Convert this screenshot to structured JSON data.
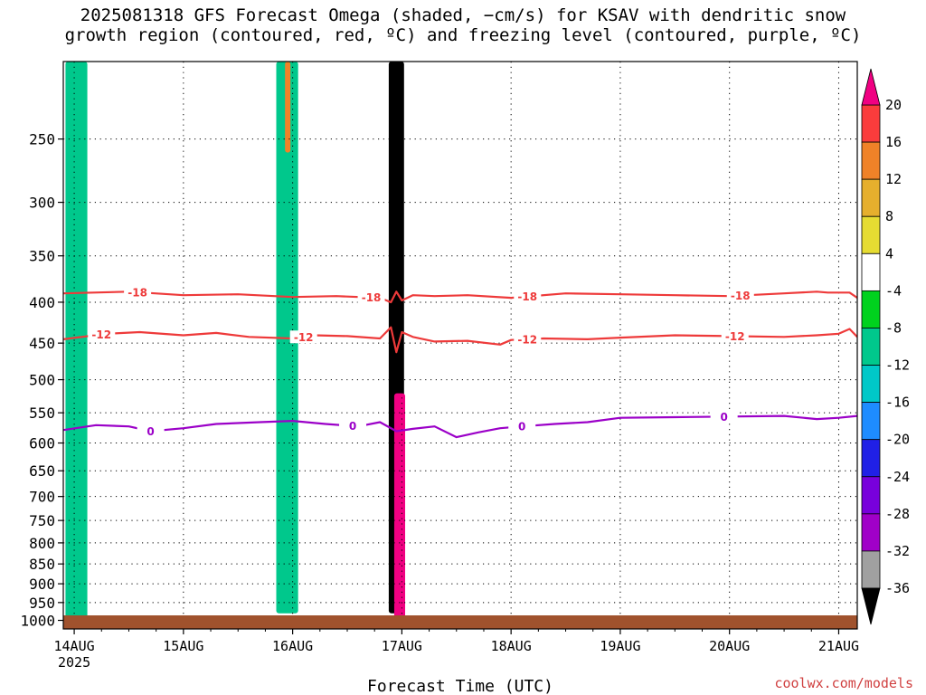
{
  "title_line1": "2025081318 GFS Forecast Omega (shaded, −cm/s) for KSAV with dendritic snow",
  "title_line2": "growth region (contoured, red, ºC) and freezing level (contoured, purple, ºC)",
  "credit": "coolwx.com/models",
  "chart_data": {
    "type": "heatmap",
    "xlabel": "Forecast Time (UTC)",
    "ylabel": "",
    "x_ticks": [
      "14AUG",
      "15AUG",
      "16AUG",
      "17AUG",
      "18AUG",
      "19AUG",
      "20AUG",
      "21AUG"
    ],
    "x_year_label": "2025",
    "x_range_days": [
      -0.1,
      7.17
    ],
    "y_ticks": [
      250,
      300,
      350,
      400,
      450,
      500,
      550,
      600,
      650,
      700,
      750,
      800,
      850,
      900,
      950,
      1000
    ],
    "y_range_hpa": [
      200,
      1025
    ],
    "y_scale": "log (pressure)",
    "grid": true,
    "colorbar": {
      "labels": [
        "20",
        "16",
        "12",
        "8",
        "4",
        "-4",
        "-8",
        "-12",
        "-16",
        "-20",
        "-24",
        "-28",
        "-32",
        "-36"
      ],
      "bins": [
        {
          "range": "<-36",
          "color": "#000000"
        },
        {
          "range": "-36 to -32",
          "color": "#a0a0a0"
        },
        {
          "range": "-32 to -28",
          "color": "#a000c8"
        },
        {
          "range": "-28 to -24",
          "color": "#7800dc"
        },
        {
          "range": "-24 to -20",
          "color": "#2020e6"
        },
        {
          "range": "-20 to -16",
          "color": "#1e8cff"
        },
        {
          "range": "-16 to -12",
          "color": "#00c8c8"
        },
        {
          "range": "-12 to -8",
          "color": "#00c88c"
        },
        {
          "range": "-8 to -4",
          "color": "#00d21e"
        },
        {
          "range": "-4 to 4",
          "color": "#ffffff"
        },
        {
          "range": "4 to 8",
          "color": "#e6dc32"
        },
        {
          "range": "8 to 12",
          "color": "#e6af2d"
        },
        {
          "range": "12 to 16",
          "color": "#f08228"
        },
        {
          "range": "16 to 20",
          "color": "#fa3c3c"
        },
        {
          "range": ">20",
          "color": "#f00082"
        }
      ]
    },
    "contours": [
      {
        "label": "-18",
        "color": "#ee3a3a",
        "x": [
          -0.1,
          0.5,
          1.0,
          1.5,
          2.0,
          2.4,
          2.8,
          2.9,
          2.95,
          3.0,
          3.1,
          3.3,
          3.6,
          4.0,
          4.5,
          5.0,
          5.5,
          6.0,
          6.5,
          6.8,
          6.9,
          7.1,
          7.17
        ],
        "y": [
          390,
          388,
          392,
          391,
          394,
          393,
          395,
          400,
          388,
          398,
          392,
          393,
          392,
          395,
          390,
          391,
          392,
          393,
          390,
          388,
          389,
          389,
          395
        ],
        "label_x": [
          0.58,
          2.72,
          4.15,
          6.1
        ]
      },
      {
        "label": "-12",
        "color": "#ee3a3a",
        "x": [
          -0.1,
          0.3,
          0.6,
          1.0,
          1.3,
          1.6,
          2.0,
          2.2,
          2.5,
          2.8,
          2.9,
          2.95,
          3.0,
          3.1,
          3.3,
          3.6,
          3.9,
          4.0,
          4.3,
          4.7,
          5.0,
          5.5,
          6.0,
          6.5,
          6.8,
          7.0,
          7.1,
          7.17
        ],
        "y": [
          445,
          438,
          436,
          440,
          437,
          442,
          444,
          440,
          441,
          444,
          430,
          462,
          436,
          442,
          448,
          447,
          452,
          446,
          444,
          445,
          443,
          440,
          441,
          442,
          440,
          438,
          432,
          442
        ],
        "label_x": [
          0.25,
          2.1,
          4.15,
          6.05
        ]
      },
      {
        "label": "0",
        "color": "#9b00c8",
        "x": [
          -0.1,
          0.2,
          0.5,
          0.7,
          1.0,
          1.3,
          1.7,
          2.0,
          2.3,
          2.6,
          2.8,
          2.95,
          3.1,
          3.3,
          3.5,
          3.7,
          3.9,
          4.1,
          4.4,
          4.7,
          5.0,
          5.5,
          6.0,
          6.5,
          6.8,
          7.0,
          7.17
        ],
        "y": [
          578,
          570,
          572,
          580,
          575,
          568,
          565,
          563,
          568,
          572,
          565,
          580,
          576,
          572,
          590,
          582,
          575,
          572,
          568,
          565,
          558,
          557,
          556,
          555,
          560,
          558,
          555
        ],
        "label_x": [
          0.7,
          2.55,
          4.1,
          5.95
        ]
      }
    ],
    "shaded_features": [
      {
        "desc": "strong rising motion column",
        "x": [
          2.88,
          3.02
        ],
        "p": [
          200,
          980
        ],
        "value": -36
      },
      {
        "desc": "strong sinking motion",
        "x": [
          2.93,
          3.03
        ],
        "p": [
          520,
          1000
        ],
        "value": 20
      },
      {
        "desc": "rising motion column",
        "x": [
          -0.08,
          0.12
        ],
        "p": [
          200,
          1000
        ],
        "value": -10
      },
      {
        "desc": "rising motion column",
        "x": [
          1.85,
          2.05
        ],
        "p": [
          200,
          980
        ],
        "value": -10
      },
      {
        "desc": "sinking motion streak",
        "x": [
          1.93,
          1.98
        ],
        "p": [
          200,
          260
        ],
        "value": 14
      }
    ],
    "surface_color": "#a0522d"
  }
}
